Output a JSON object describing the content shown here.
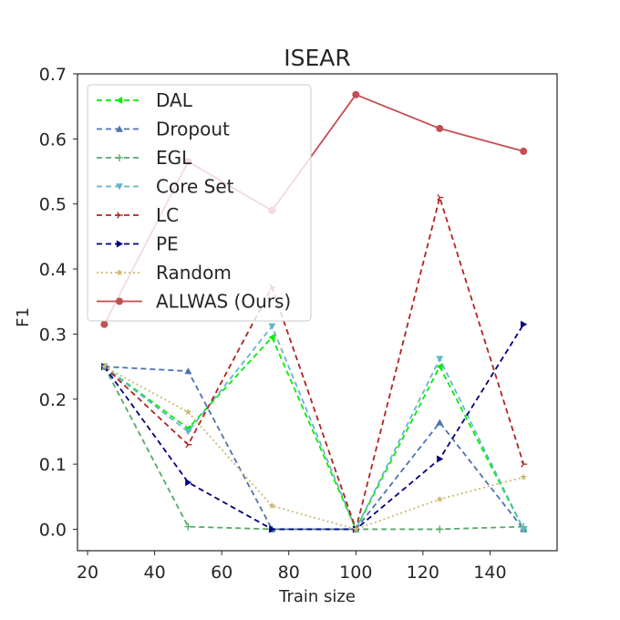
{
  "chart_data": {
    "type": "line",
    "title": "ISEAR",
    "xlabel": "Train size",
    "ylabel": "F1",
    "xlim": [
      17,
      160
    ],
    "ylim": [
      -0.033,
      0.7
    ],
    "xticks": [
      20,
      40,
      60,
      80,
      100,
      120,
      140
    ],
    "xtick_labels": [
      "20",
      "40",
      "60",
      "80",
      "100",
      "120",
      "140"
    ],
    "yticks": [
      0.0,
      0.1,
      0.2,
      0.3,
      0.4,
      0.5,
      0.6,
      0.7
    ],
    "ytick_labels": [
      "0.0",
      "0.1",
      "0.2",
      "0.3",
      "0.4",
      "0.5",
      "0.6",
      "0.7"
    ],
    "grid": false,
    "legend_position": "top-left",
    "x": [
      25,
      50,
      75,
      100,
      125,
      150
    ],
    "series": [
      {
        "name": "DAL",
        "values": [
          0.25,
          0.155,
          0.295,
          0.0,
          0.25,
          0.0
        ],
        "color": "#00ee00",
        "dash": "6,4",
        "marker": "triangle-left"
      },
      {
        "name": "Dropout",
        "values": [
          0.25,
          0.243,
          0.0,
          0.0,
          0.164,
          0.0
        ],
        "color": "#4c72b0",
        "dash": "6,4",
        "marker": "triangle-up"
      },
      {
        "name": "EGL",
        "values": [
          0.25,
          0.004,
          0.0,
          0.0,
          0.0,
          0.004
        ],
        "color": "#55a868",
        "dash": "6,4",
        "marker": "plus"
      },
      {
        "name": "Core Set",
        "values": [
          0.25,
          0.15,
          0.312,
          0.0,
          0.262,
          0.0
        ],
        "color": "#64b5cd",
        "dash": "6,4",
        "marker": "triangle-down"
      },
      {
        "name": "LC",
        "values": [
          0.25,
          0.13,
          0.372,
          0.0,
          0.51,
          0.1
        ],
        "color": "#b22222",
        "dash": "6,4",
        "marker": "tri-right"
      },
      {
        "name": "PE",
        "values": [
          0.25,
          0.072,
          0.0,
          0.0,
          0.108,
          0.315
        ],
        "color": "#000080",
        "dash": "6,4",
        "marker": "triangle-right"
      },
      {
        "name": "Random",
        "values": [
          0.25,
          0.18,
          0.036,
          0.0,
          0.046,
          0.08
        ],
        "color": "#ccb974",
        "dash": "2,3",
        "marker": "star"
      },
      {
        "name": "ALLWAS (Ours)",
        "values": [
          0.315,
          0.565,
          0.49,
          0.668,
          0.616,
          0.581
        ],
        "color": "#c44e52",
        "dash": "",
        "marker": "circle"
      }
    ]
  }
}
